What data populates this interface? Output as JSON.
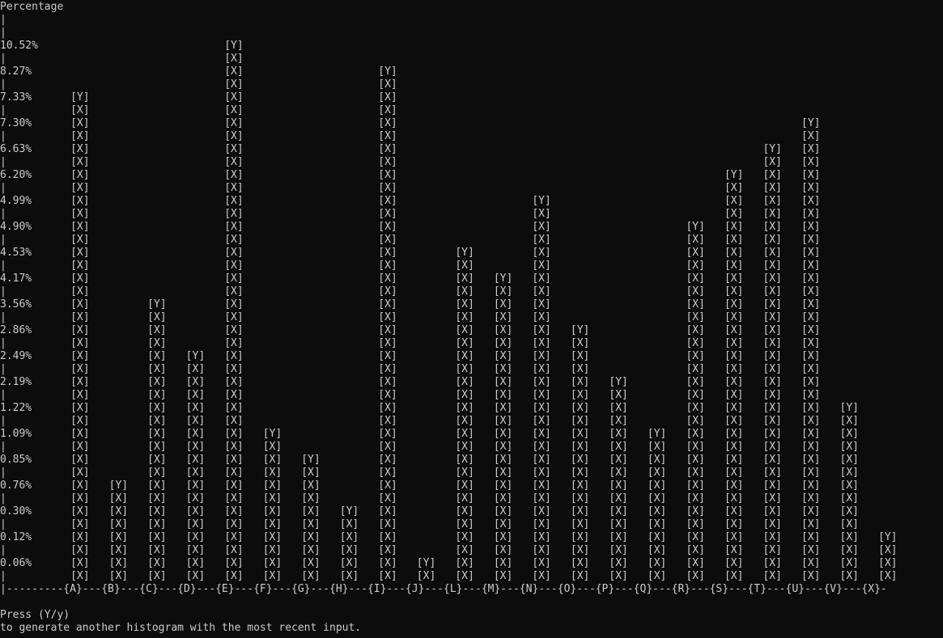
{
  "terminal": {
    "header_label": "Percentage",
    "axis_char": "|",
    "bar_top_cell": "[Y]",
    "bar_cell": "[X]",
    "baseline_prefix": "|",
    "baseline_dashes": "---",
    "footer_line1": "Press (Y/y)",
    "footer_line2": "to generate another histogram with the most recent input.",
    "text_color": "#cccccc",
    "background": "#0c0c0c"
  },
  "chart_data": {
    "type": "bar",
    "title": "",
    "ylabel": "Percentage",
    "xlabel": "",
    "y_tick_labels": [
      "10.52%",
      "8.27%",
      "7.33%",
      "7.30%",
      "6.63%",
      "6.20%",
      "4.99%",
      "4.90%",
      "4.53%",
      "4.17%",
      "3.56%",
      "2.86%",
      "2.49%",
      "2.19%",
      "1.22%",
      "1.09%",
      "0.85%",
      "0.76%",
      "0.30%",
      "0.12%",
      "0.06%"
    ],
    "categories": [
      "A",
      "B",
      "C",
      "D",
      "E",
      "F",
      "G",
      "H",
      "I",
      "J",
      "L",
      "M",
      "N",
      "O",
      "P",
      "Q",
      "R",
      "S",
      "T",
      "U",
      "V",
      "X"
    ],
    "values": [
      7.33,
      0.76,
      3.56,
      2.49,
      10.52,
      1.09,
      0.85,
      0.3,
      8.27,
      0.06,
      4.53,
      4.17,
      4.99,
      2.86,
      2.19,
      1.09,
      4.9,
      6.2,
      6.63,
      7.3,
      1.22,
      0.12
    ],
    "level_rank": [
      3,
      18,
      11,
      13,
      1,
      16,
      17,
      19,
      2,
      21,
      9,
      10,
      7,
      12,
      14,
      16,
      8,
      6,
      5,
      4,
      15,
      20
    ]
  }
}
